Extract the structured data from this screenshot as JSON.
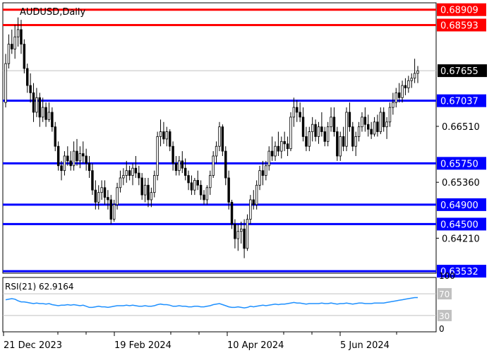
{
  "chart_data": {
    "type": "candlestick",
    "title": "AUDUSD,Daily",
    "price_axis": {
      "ylim": [
        0.6349,
        0.6905
      ],
      "ticks": [
        "0.66510",
        "0.65360",
        "0.64210"
      ]
    },
    "current_price": {
      "value": 0.67655,
      "label": "0.67655"
    },
    "levels": [
      {
        "value": 0.68909,
        "label": "0.68909",
        "kind": "resistance",
        "color": "#ff0000"
      },
      {
        "value": 0.68593,
        "label": "0.68593",
        "kind": "resistance",
        "color": "#ff0000"
      },
      {
        "value": 0.67037,
        "label": "0.67037",
        "kind": "support",
        "color": "#0000ff"
      },
      {
        "value": 0.6575,
        "label": "0.65750",
        "kind": "support",
        "color": "#0000ff"
      },
      {
        "value": 0.649,
        "label": "0.64900",
        "kind": "support",
        "color": "#0000ff"
      },
      {
        "value": 0.645,
        "label": "0.64500",
        "kind": "support",
        "color": "#0000ff"
      },
      {
        "value": 0.63532,
        "label": "0.63532",
        "kind": "support",
        "color": "#0000ff"
      }
    ],
    "x_labels": [
      "21 Dec 2023",
      "19 Feb 2024",
      "10 Apr 2024",
      "5 Jun 2024"
    ],
    "ohlc": [
      [
        0.67,
        0.68,
        0.669,
        0.678
      ],
      [
        0.678,
        0.684,
        0.677,
        0.682
      ],
      [
        0.682,
        0.685,
        0.68,
        0.681
      ],
      [
        0.681,
        0.686,
        0.679,
        0.6835
      ],
      [
        0.6835,
        0.6875,
        0.6815,
        0.685
      ],
      [
        0.685,
        0.687,
        0.68,
        0.682
      ],
      [
        0.682,
        0.683,
        0.676,
        0.677
      ],
      [
        0.677,
        0.678,
        0.672,
        0.6735
      ],
      [
        0.6735,
        0.676,
        0.67,
        0.672
      ],
      [
        0.672,
        0.674,
        0.666,
        0.668
      ],
      [
        0.668,
        0.673,
        0.667,
        0.671
      ],
      [
        0.671,
        0.672,
        0.665,
        0.667
      ],
      [
        0.667,
        0.671,
        0.666,
        0.669
      ],
      [
        0.669,
        0.67,
        0.665,
        0.6665
      ],
      [
        0.6665,
        0.67,
        0.666,
        0.668
      ],
      [
        0.668,
        0.669,
        0.664,
        0.665
      ],
      [
        0.665,
        0.666,
        0.66,
        0.661
      ],
      [
        0.661,
        0.662,
        0.656,
        0.657
      ],
      [
        0.657,
        0.658,
        0.654,
        0.656
      ],
      [
        0.656,
        0.66,
        0.655,
        0.659
      ],
      [
        0.659,
        0.661,
        0.657,
        0.658
      ],
      [
        0.658,
        0.66,
        0.656,
        0.657
      ],
      [
        0.657,
        0.662,
        0.656,
        0.66
      ],
      [
        0.66,
        0.6625,
        0.657,
        0.658
      ],
      [
        0.658,
        0.661,
        0.6565,
        0.6595
      ],
      [
        0.6595,
        0.662,
        0.6575,
        0.659
      ],
      [
        0.659,
        0.6605,
        0.656,
        0.6575
      ],
      [
        0.6575,
        0.659,
        0.6545,
        0.656
      ],
      [
        0.656,
        0.6575,
        0.651,
        0.652
      ],
      [
        0.652,
        0.654,
        0.648,
        0.6495
      ],
      [
        0.6495,
        0.653,
        0.648,
        0.6515
      ],
      [
        0.6515,
        0.654,
        0.65,
        0.6525
      ],
      [
        0.6525,
        0.654,
        0.649,
        0.6505
      ],
      [
        0.6505,
        0.652,
        0.648,
        0.65
      ],
      [
        0.65,
        0.651,
        0.645,
        0.646
      ],
      [
        0.646,
        0.65,
        0.6455,
        0.649
      ],
      [
        0.649,
        0.6535,
        0.648,
        0.6525
      ],
      [
        0.6525,
        0.656,
        0.6515,
        0.6545
      ],
      [
        0.6545,
        0.6565,
        0.653,
        0.655
      ],
      [
        0.655,
        0.658,
        0.6535,
        0.656
      ],
      [
        0.656,
        0.657,
        0.654,
        0.655
      ],
      [
        0.655,
        0.6575,
        0.653,
        0.6565
      ],
      [
        0.6565,
        0.659,
        0.6545,
        0.6555
      ],
      [
        0.6555,
        0.657,
        0.653,
        0.6545
      ],
      [
        0.6545,
        0.6555,
        0.65,
        0.651
      ],
      [
        0.651,
        0.6545,
        0.6495,
        0.653
      ],
      [
        0.653,
        0.6545,
        0.6485,
        0.65
      ],
      [
        0.65,
        0.6525,
        0.6485,
        0.6515
      ],
      [
        0.6515,
        0.656,
        0.6505,
        0.655
      ],
      [
        0.655,
        0.664,
        0.654,
        0.663
      ],
      [
        0.663,
        0.6665,
        0.661,
        0.664
      ],
      [
        0.664,
        0.666,
        0.6615,
        0.6625
      ],
      [
        0.6625,
        0.665,
        0.661,
        0.664
      ],
      [
        0.664,
        0.6645,
        0.66,
        0.661
      ],
      [
        0.661,
        0.662,
        0.656,
        0.6575
      ],
      [
        0.6575,
        0.659,
        0.655,
        0.656
      ],
      [
        0.656,
        0.659,
        0.655,
        0.658
      ],
      [
        0.658,
        0.66,
        0.6555,
        0.6565
      ],
      [
        0.6565,
        0.6585,
        0.654,
        0.655
      ],
      [
        0.655,
        0.656,
        0.652,
        0.6535
      ],
      [
        0.6535,
        0.655,
        0.651,
        0.652
      ],
      [
        0.652,
        0.6545,
        0.651,
        0.654
      ],
      [
        0.654,
        0.656,
        0.652,
        0.653
      ],
      [
        0.653,
        0.654,
        0.65,
        0.651
      ],
      [
        0.651,
        0.652,
        0.649,
        0.65
      ],
      [
        0.65,
        0.653,
        0.649,
        0.6525
      ],
      [
        0.6525,
        0.656,
        0.651,
        0.655
      ],
      [
        0.655,
        0.66,
        0.6545,
        0.659
      ],
      [
        0.659,
        0.662,
        0.6575,
        0.661
      ],
      [
        0.661,
        0.666,
        0.66,
        0.665
      ],
      [
        0.665,
        0.6655,
        0.659,
        0.66
      ],
      [
        0.66,
        0.661,
        0.653,
        0.6545
      ],
      [
        0.6545,
        0.656,
        0.648,
        0.6495
      ],
      [
        0.6495,
        0.65,
        0.644,
        0.645
      ],
      [
        0.645,
        0.646,
        0.64,
        0.642
      ],
      [
        0.642,
        0.645,
        0.6395,
        0.6435
      ],
      [
        0.6435,
        0.6455,
        0.641,
        0.644
      ],
      [
        0.644,
        0.646,
        0.638,
        0.64
      ],
      [
        0.64,
        0.647,
        0.6395,
        0.646
      ],
      [
        0.646,
        0.651,
        0.645,
        0.65
      ],
      [
        0.65,
        0.652,
        0.648,
        0.649
      ],
      [
        0.649,
        0.654,
        0.648,
        0.653
      ],
      [
        0.653,
        0.657,
        0.652,
        0.656
      ],
      [
        0.656,
        0.658,
        0.653,
        0.655
      ],
      [
        0.655,
        0.658,
        0.654,
        0.657
      ],
      [
        0.657,
        0.661,
        0.656,
        0.66
      ],
      [
        0.66,
        0.663,
        0.658,
        0.659
      ],
      [
        0.659,
        0.662,
        0.658,
        0.661
      ],
      [
        0.661,
        0.664,
        0.659,
        0.66
      ],
      [
        0.66,
        0.663,
        0.6585,
        0.662
      ],
      [
        0.662,
        0.664,
        0.66,
        0.6615
      ],
      [
        0.6615,
        0.663,
        0.659,
        0.6605
      ],
      [
        0.6605,
        0.668,
        0.66,
        0.667
      ],
      [
        0.667,
        0.671,
        0.665,
        0.669
      ],
      [
        0.669,
        0.6705,
        0.666,
        0.668
      ],
      [
        0.668,
        0.67,
        0.666,
        0.667
      ],
      [
        0.667,
        0.669,
        0.662,
        0.663
      ],
      [
        0.663,
        0.665,
        0.66,
        0.661
      ],
      [
        0.661,
        0.665,
        0.66,
        0.664
      ],
      [
        0.664,
        0.667,
        0.662,
        0.6655
      ],
      [
        0.6655,
        0.6665,
        0.662,
        0.663
      ],
      [
        0.663,
        0.666,
        0.6615,
        0.665
      ],
      [
        0.665,
        0.668,
        0.663,
        0.664
      ],
      [
        0.664,
        0.665,
        0.661,
        0.662
      ],
      [
        0.662,
        0.666,
        0.661,
        0.665
      ],
      [
        0.665,
        0.669,
        0.664,
        0.667
      ],
      [
        0.667,
        0.669,
        0.663,
        0.664
      ],
      [
        0.664,
        0.665,
        0.658,
        0.659
      ],
      [
        0.659,
        0.664,
        0.658,
        0.663
      ],
      [
        0.663,
        0.665,
        0.66,
        0.661
      ],
      [
        0.661,
        0.669,
        0.66,
        0.668
      ],
      [
        0.668,
        0.67,
        0.664,
        0.665
      ],
      [
        0.665,
        0.666,
        0.66,
        0.661
      ],
      [
        0.661,
        0.664,
        0.659,
        0.663
      ],
      [
        0.663,
        0.666,
        0.662,
        0.665
      ],
      [
        0.665,
        0.668,
        0.664,
        0.667
      ],
      [
        0.667,
        0.669,
        0.664,
        0.6655
      ],
      [
        0.6655,
        0.6675,
        0.663,
        0.6645
      ],
      [
        0.6645,
        0.666,
        0.6625,
        0.6635
      ],
      [
        0.6635,
        0.667,
        0.663,
        0.666
      ],
      [
        0.666,
        0.6675,
        0.663,
        0.664
      ],
      [
        0.664,
        0.669,
        0.6635,
        0.668
      ],
      [
        0.668,
        0.669,
        0.664,
        0.665
      ],
      [
        0.665,
        0.667,
        0.6625,
        0.666
      ],
      [
        0.666,
        0.67,
        0.665,
        0.669
      ],
      [
        0.669,
        0.672,
        0.6675,
        0.67
      ],
      [
        0.67,
        0.673,
        0.669,
        0.672
      ],
      [
        0.672,
        0.674,
        0.67,
        0.671
      ],
      [
        0.671,
        0.6745,
        0.67,
        0.6735
      ],
      [
        0.6735,
        0.675,
        0.6715,
        0.673
      ],
      [
        0.673,
        0.6755,
        0.672,
        0.6745
      ],
      [
        0.6745,
        0.676,
        0.673,
        0.675
      ],
      [
        0.675,
        0.679,
        0.674,
        0.676
      ],
      [
        0.676,
        0.6775,
        0.674,
        0.6765
      ]
    ],
    "rsi": {
      "label": "RSI(21) 62.9164",
      "period": 21,
      "value": 62.9164,
      "ylim": [
        0,
        100
      ],
      "ticks": [
        "100",
        "70",
        "30",
        "0"
      ],
      "series": [
        59,
        60,
        61,
        60,
        57,
        55,
        55,
        54,
        53,
        52,
        53,
        52,
        52,
        51,
        52,
        50,
        49,
        48,
        49,
        49,
        50,
        49,
        50,
        49,
        48,
        49,
        47,
        45,
        45,
        46,
        47,
        46,
        46,
        45,
        46,
        47,
        48,
        48,
        48,
        49,
        48,
        49,
        48,
        47,
        47,
        48,
        47,
        47,
        48,
        50,
        51,
        50,
        50,
        49,
        47,
        47,
        48,
        47,
        47,
        46,
        46,
        47,
        47,
        46,
        46,
        47,
        48,
        50,
        51,
        52,
        50,
        48,
        46,
        45,
        45,
        46,
        45,
        44,
        45,
        47,
        46,
        47,
        48,
        49,
        48,
        49,
        50,
        51,
        50,
        51,
        51,
        52,
        53,
        54,
        53,
        53,
        52,
        51,
        52,
        52,
        52,
        52,
        53,
        52,
        52,
        53,
        52,
        51,
        52,
        52,
        53,
        52,
        51,
        52,
        53,
        53,
        52,
        52,
        52,
        53,
        53,
        53,
        53,
        54,
        55,
        56,
        57,
        58,
        59,
        60,
        61,
        62,
        63,
        63
      ]
    }
  },
  "colors": {
    "candle": "#000000",
    "grid": "#c0c0c0",
    "rsi_line": "#1e90ff",
    "rsi_level": "#c0c0c0",
    "price_badge": "#000000"
  }
}
